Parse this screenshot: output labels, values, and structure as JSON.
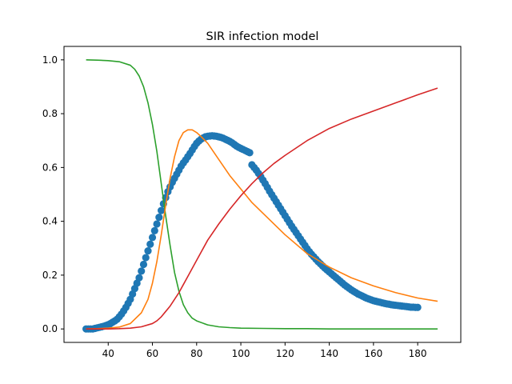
{
  "chart_data": {
    "type": "line",
    "title": "SIR infection model",
    "xlabel": "",
    "ylabel": "",
    "xlim": [
      20.0,
      199.5
    ],
    "ylim": [
      -0.05,
      1.05
    ],
    "x_ticks": [
      40,
      60,
      80,
      100,
      120,
      140,
      160,
      180
    ],
    "y_ticks": [
      0.0,
      0.2,
      0.4,
      0.6,
      0.8,
      1.0
    ],
    "x_tick_labels": [
      "40",
      "60",
      "80",
      "100",
      "120",
      "140",
      "160",
      "180"
    ],
    "y_tick_labels": [
      "0.0",
      "0.2",
      "0.4",
      "0.6",
      "0.8",
      "1.0"
    ],
    "grid": false,
    "legend": "none",
    "series": [
      {
        "kind": "scatter",
        "color": "#1f77b4",
        "points": [
          [
            30,
            0.0
          ],
          [
            31,
            0.0
          ],
          [
            32,
            0.0
          ],
          [
            33,
            0.0
          ],
          [
            34,
            0.002
          ],
          [
            35,
            0.004
          ],
          [
            36,
            0.006
          ],
          [
            37,
            0.008
          ],
          [
            38,
            0.01
          ],
          [
            39,
            0.013
          ],
          [
            40,
            0.016
          ],
          [
            41,
            0.02
          ],
          [
            42,
            0.025
          ],
          [
            43,
            0.03
          ],
          [
            44,
            0.036
          ],
          [
            45,
            0.045
          ],
          [
            46,
            0.055
          ],
          [
            47,
            0.067
          ],
          [
            48,
            0.08
          ],
          [
            49,
            0.095
          ],
          [
            50,
            0.11
          ],
          [
            51,
            0.13
          ],
          [
            52,
            0.15
          ],
          [
            53,
            0.17
          ],
          [
            54,
            0.19
          ],
          [
            55,
            0.215
          ],
          [
            56,
            0.24
          ],
          [
            57,
            0.265
          ],
          [
            58,
            0.29
          ],
          [
            59,
            0.315
          ],
          [
            60,
            0.34
          ],
          [
            61,
            0.365
          ],
          [
            62,
            0.39
          ],
          [
            63,
            0.415
          ],
          [
            64,
            0.44
          ],
          [
            65,
            0.465
          ],
          [
            66,
            0.488
          ],
          [
            67,
            0.51
          ],
          [
            68,
            0.528
          ],
          [
            69,
            0.545
          ],
          [
            70,
            0.56
          ],
          [
            71,
            0.575
          ],
          [
            72,
            0.59
          ],
          [
            73,
            0.605
          ],
          [
            74,
            0.617
          ],
          [
            75,
            0.628
          ],
          [
            76,
            0.64
          ],
          [
            77,
            0.652
          ],
          [
            78,
            0.665
          ],
          [
            79,
            0.678
          ],
          [
            80,
            0.69
          ],
          [
            81,
            0.698
          ],
          [
            82,
            0.705
          ],
          [
            83,
            0.71
          ],
          [
            84,
            0.714
          ],
          [
            85,
            0.716
          ],
          [
            86,
            0.717
          ],
          [
            87,
            0.718
          ],
          [
            88,
            0.717
          ],
          [
            89,
            0.716
          ],
          [
            90,
            0.714
          ],
          [
            91,
            0.712
          ],
          [
            92,
            0.709
          ],
          [
            93,
            0.705
          ],
          [
            94,
            0.701
          ],
          [
            95,
            0.697
          ],
          [
            96,
            0.692
          ],
          [
            97,
            0.686
          ],
          [
            98,
            0.68
          ],
          [
            99,
            0.675
          ],
          [
            100,
            0.671
          ],
          [
            101,
            0.667
          ],
          [
            102,
            0.663
          ],
          [
            103,
            0.659
          ],
          [
            104,
            0.655
          ],
          [
            105,
            0.61
          ],
          [
            106,
            0.6
          ],
          [
            107,
            0.59
          ],
          [
            108,
            0.578
          ],
          [
            109,
            0.566
          ],
          [
            110,
            0.553
          ],
          [
            111,
            0.54
          ],
          [
            112,
            0.526
          ],
          [
            113,
            0.512
          ],
          [
            114,
            0.499
          ],
          [
            115,
            0.486
          ],
          [
            116,
            0.473
          ],
          [
            117,
            0.46
          ],
          [
            118,
            0.447
          ],
          [
            119,
            0.434
          ],
          [
            120,
            0.421
          ],
          [
            121,
            0.408
          ],
          [
            122,
            0.395
          ],
          [
            123,
            0.382
          ],
          [
            124,
            0.37
          ],
          [
            125,
            0.358
          ],
          [
            126,
            0.346
          ],
          [
            127,
            0.334
          ],
          [
            128,
            0.322
          ],
          [
            129,
            0.31
          ],
          [
            130,
            0.298
          ],
          [
            131,
            0.287
          ],
          [
            132,
            0.277
          ],
          [
            133,
            0.268
          ],
          [
            134,
            0.259
          ],
          [
            135,
            0.25
          ],
          [
            136,
            0.242
          ],
          [
            137,
            0.234
          ],
          [
            138,
            0.226
          ],
          [
            139,
            0.219
          ],
          [
            140,
            0.212
          ],
          [
            141,
            0.205
          ],
          [
            142,
            0.198
          ],
          [
            143,
            0.191
          ],
          [
            144,
            0.184
          ],
          [
            145,
            0.177
          ],
          [
            146,
            0.17
          ],
          [
            147,
            0.163
          ],
          [
            148,
            0.157
          ],
          [
            149,
            0.151
          ],
          [
            150,
            0.145
          ],
          [
            151,
            0.14
          ],
          [
            152,
            0.135
          ],
          [
            153,
            0.13
          ],
          [
            154,
            0.126
          ],
          [
            155,
            0.122
          ],
          [
            156,
            0.118
          ],
          [
            157,
            0.114
          ],
          [
            158,
            0.111
          ],
          [
            159,
            0.108
          ],
          [
            160,
            0.105
          ],
          [
            161,
            0.103
          ],
          [
            162,
            0.101
          ],
          [
            163,
            0.099
          ],
          [
            164,
            0.097
          ],
          [
            165,
            0.095
          ],
          [
            166,
            0.093
          ],
          [
            167,
            0.092
          ],
          [
            168,
            0.09
          ],
          [
            169,
            0.089
          ],
          [
            170,
            0.088
          ],
          [
            171,
            0.087
          ],
          [
            172,
            0.086
          ],
          [
            173,
            0.085
          ],
          [
            174,
            0.084
          ],
          [
            175,
            0.083
          ],
          [
            176,
            0.082
          ],
          [
            177,
            0.081
          ],
          [
            178,
            0.081
          ],
          [
            179,
            0.08
          ],
          [
            180,
            0.08
          ]
        ]
      },
      {
        "kind": "line",
        "color": "#2ca02c",
        "x": [
          30,
          35,
          40,
          45,
          50,
          52,
          54,
          56,
          58,
          60,
          62,
          64,
          66,
          68,
          70,
          72,
          74,
          76,
          78,
          80,
          85,
          90,
          95,
          100,
          110,
          120,
          130,
          140,
          150,
          160,
          170,
          180,
          189
        ],
        "values": [
          1.0,
          0.999,
          0.997,
          0.993,
          0.98,
          0.965,
          0.94,
          0.9,
          0.84,
          0.76,
          0.66,
          0.54,
          0.42,
          0.31,
          0.21,
          0.14,
          0.09,
          0.06,
          0.04,
          0.03,
          0.015,
          0.008,
          0.005,
          0.003,
          0.002,
          0.001,
          0.001,
          0.0,
          0.0,
          0.0,
          0.0,
          0.0,
          0.0
        ]
      },
      {
        "kind": "line",
        "color": "#ff7f0e",
        "x": [
          30,
          35,
          40,
          45,
          50,
          55,
          58,
          60,
          62,
          64,
          66,
          68,
          70,
          72,
          74,
          76,
          78,
          80,
          82,
          85,
          90,
          95,
          100,
          105,
          110,
          120,
          130,
          140,
          150,
          160,
          170,
          180,
          189
        ],
        "values": [
          0.0,
          0.001,
          0.003,
          0.007,
          0.02,
          0.06,
          0.11,
          0.17,
          0.25,
          0.35,
          0.46,
          0.56,
          0.64,
          0.7,
          0.73,
          0.74,
          0.74,
          0.73,
          0.715,
          0.69,
          0.63,
          0.57,
          0.52,
          0.47,
          0.43,
          0.35,
          0.28,
          0.23,
          0.19,
          0.16,
          0.135,
          0.115,
          0.103
        ]
      },
      {
        "kind": "line",
        "color": "#d62728",
        "x": [
          30,
          35,
          40,
          45,
          50,
          55,
          60,
          62,
          64,
          66,
          68,
          70,
          72,
          74,
          76,
          78,
          80,
          85,
          90,
          95,
          100,
          105,
          110,
          115,
          120,
          130,
          140,
          150,
          160,
          170,
          180,
          189
        ],
        "values": [
          0.0,
          0.0,
          0.0,
          0.001,
          0.003,
          0.008,
          0.02,
          0.03,
          0.045,
          0.065,
          0.085,
          0.11,
          0.135,
          0.165,
          0.195,
          0.225,
          0.255,
          0.33,
          0.39,
          0.445,
          0.495,
          0.54,
          0.58,
          0.615,
          0.645,
          0.7,
          0.745,
          0.78,
          0.81,
          0.84,
          0.87,
          0.895
        ]
      }
    ]
  }
}
